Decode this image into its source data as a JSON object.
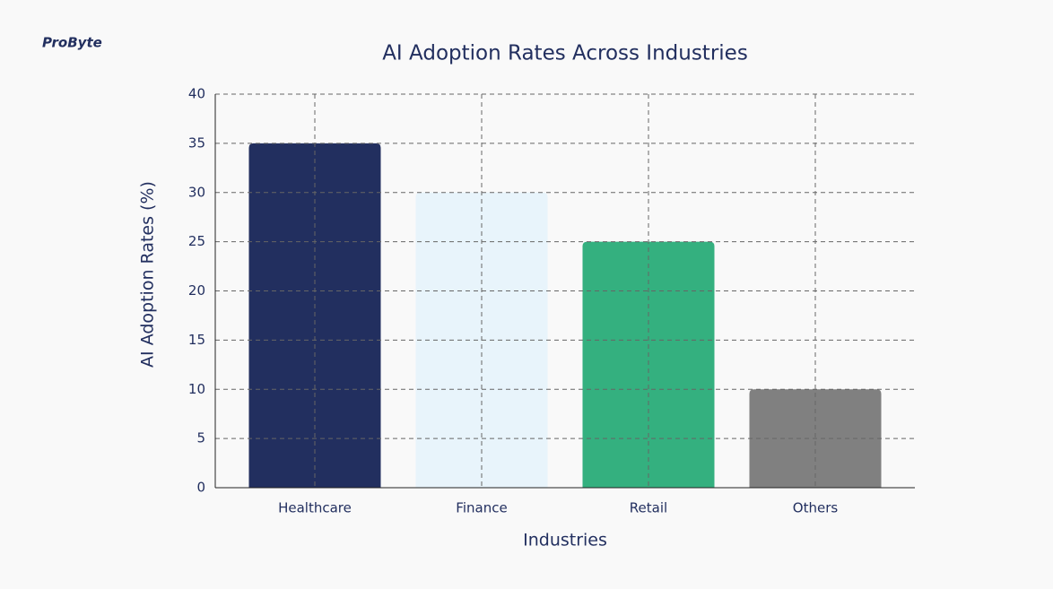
{
  "brand": "ProByte",
  "chart_data": {
    "type": "bar",
    "title": "AI Adoption Rates Across Industries",
    "x_label": "Industries",
    "y_label": "AI Adoption Rates (%)",
    "categories": [
      "Healthcare",
      "Finance",
      "Retail",
      "Others"
    ],
    "values": [
      35,
      30,
      25,
      10
    ],
    "colors": [
      "#222f5f",
      "#e8f4fb",
      "#34b07f",
      "#808080"
    ],
    "ylim": [
      0,
      40
    ],
    "yticks": [
      0,
      5,
      10,
      15,
      20,
      25,
      30,
      35,
      40
    ],
    "grid": true
  }
}
